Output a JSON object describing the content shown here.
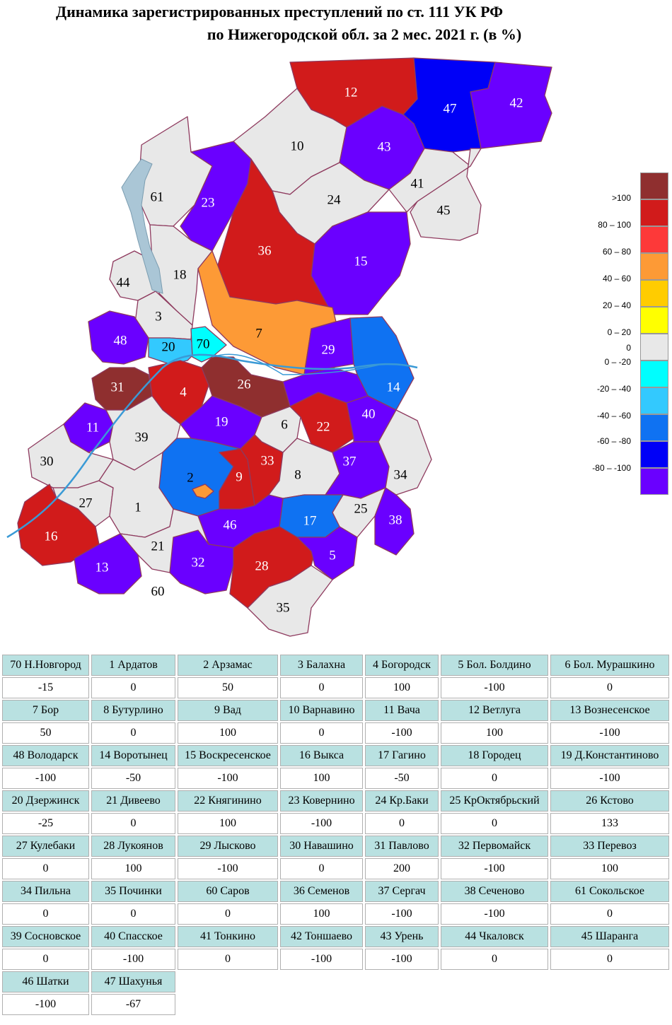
{
  "title": {
    "line1": "Динамика зарегистрированных преступлений по ст. 111 УК РФ",
    "line2": "по Нижегородской обл. за 2 мес. 2021 г. (в %)"
  },
  "legend": [
    {
      "label": ">100",
      "color": "#8f2f2f"
    },
    {
      "label": "80 – 100",
      "color": "#d11b1b"
    },
    {
      "label": "60 – 80",
      "color": "#fd3939"
    },
    {
      "label": "40 – 60",
      "color": "#fd9a36"
    },
    {
      "label": "20 – 40",
      "color": "#ffcc00"
    },
    {
      "label": "0 – 20",
      "color": "#ffff00"
    },
    {
      "label": "0",
      "color": "#e8e8e8"
    },
    {
      "label": "0 – -20",
      "color": "#00fefe"
    },
    {
      "label": "-20 – -40",
      "color": "#33c9fe"
    },
    {
      "label": "-40 – -60",
      "color": "#0f72f2"
    },
    {
      "label": "-60 – -80",
      "color": "#0000f7"
    },
    {
      "label": "-80 – -100",
      "color": "#6a00ff"
    }
  ],
  "map_labels": [
    {
      "id": "12",
      "color_light": true
    },
    {
      "id": "47",
      "color_light": true
    },
    {
      "id": "42",
      "color_light": true
    },
    {
      "id": "10"
    },
    {
      "id": "43",
      "color_light": true
    },
    {
      "id": "61"
    },
    {
      "id": "23",
      "color_light": true
    },
    {
      "id": "24"
    },
    {
      "id": "41"
    },
    {
      "id": "45"
    },
    {
      "id": "36",
      "color_light": true
    },
    {
      "id": "15",
      "color_light": true
    },
    {
      "id": "44"
    },
    {
      "id": "18"
    },
    {
      "id": "3"
    },
    {
      "id": "7"
    },
    {
      "id": "48",
      "color_light": true
    },
    {
      "id": "20"
    },
    {
      "id": "70"
    },
    {
      "id": "29",
      "color_light": true
    },
    {
      "id": "14",
      "color_light": true
    },
    {
      "id": "31",
      "color_light": true
    },
    {
      "id": "4",
      "color_light": true
    },
    {
      "id": "26",
      "color_light": true
    },
    {
      "id": "11",
      "color_light": true
    },
    {
      "id": "39"
    },
    {
      "id": "19",
      "color_light": true
    },
    {
      "id": "6"
    },
    {
      "id": "22",
      "color_light": true
    },
    {
      "id": "40",
      "color_light": true
    },
    {
      "id": "30"
    },
    {
      "id": "2"
    },
    {
      "id": "9",
      "color_light": true
    },
    {
      "id": "33",
      "color_light": true
    },
    {
      "id": "8"
    },
    {
      "id": "37",
      "color_light": true
    },
    {
      "id": "34"
    },
    {
      "id": "27"
    },
    {
      "id": "1"
    },
    {
      "id": "25"
    },
    {
      "id": "38",
      "color_light": true
    },
    {
      "id": "17",
      "color_light": true
    },
    {
      "id": "46",
      "color_light": true
    },
    {
      "id": "16",
      "color_light": true
    },
    {
      "id": "21"
    },
    {
      "id": "13",
      "color_light": true
    },
    {
      "id": "32",
      "color_light": true
    },
    {
      "id": "28",
      "color_light": true
    },
    {
      "id": "5",
      "color_light": true
    },
    {
      "id": "60"
    },
    {
      "id": "35"
    }
  ],
  "regions": [
    {
      "name": "70 Н.Новгород",
      "value": "-15"
    },
    {
      "name": "1 Ардатов",
      "value": "0"
    },
    {
      "name": "2 Арзамас",
      "value": "50"
    },
    {
      "name": "3 Балахна",
      "value": "0"
    },
    {
      "name": "4 Богородск",
      "value": "100"
    },
    {
      "name": "5 Бол. Болдино",
      "value": "-100"
    },
    {
      "name": "6 Бол. Мурашкино",
      "value": "0"
    },
    {
      "name": "7 Бор",
      "value": "50"
    },
    {
      "name": "8 Бутурлино",
      "value": "0"
    },
    {
      "name": "9 Вад",
      "value": "100"
    },
    {
      "name": "10 Варнавино",
      "value": "0"
    },
    {
      "name": "11 Вача",
      "value": "-100"
    },
    {
      "name": "12 Ветлуга",
      "value": "100"
    },
    {
      "name": "13 Вознесенское",
      "value": "-100"
    },
    {
      "name": "48 Володарск",
      "value": "-100"
    },
    {
      "name": "14 Воротынец",
      "value": "-50"
    },
    {
      "name": "15 Воскресенское",
      "value": "-100"
    },
    {
      "name": "16 Выкса",
      "value": "100"
    },
    {
      "name": "17 Гагино",
      "value": "-50"
    },
    {
      "name": "18 Городец",
      "value": "0"
    },
    {
      "name": "19 Д.Константиново",
      "value": "-100"
    },
    {
      "name": "20 Дзержинск",
      "value": "-25"
    },
    {
      "name": "21 Дивеево",
      "value": "0"
    },
    {
      "name": "22 Княгинино",
      "value": "100"
    },
    {
      "name": "23 Ковернино",
      "value": "-100"
    },
    {
      "name": "24 Кр.Баки",
      "value": "0"
    },
    {
      "name": "25 КрОктябрьский",
      "value": "0"
    },
    {
      "name": "26 Кстово",
      "value": "133"
    },
    {
      "name": "27 Кулебаки",
      "value": "0"
    },
    {
      "name": "28 Лукоянов",
      "value": "100"
    },
    {
      "name": "29 Лысково",
      "value": "-100"
    },
    {
      "name": "30 Навашино",
      "value": "0"
    },
    {
      "name": "31 Павлово",
      "value": "200"
    },
    {
      "name": "32 Первомайск",
      "value": "-100"
    },
    {
      "name": "33 Перевоз",
      "value": "100"
    },
    {
      "name": "34 Пильна",
      "value": "0"
    },
    {
      "name": "35 Починки",
      "value": "0"
    },
    {
      "name": "60 Саров",
      "value": "0"
    },
    {
      "name": "36 Семенов",
      "value": "100"
    },
    {
      "name": "37 Сергач",
      "value": "-100"
    },
    {
      "name": "38 Сеченово",
      "value": "-100"
    },
    {
      "name": "61 Сокольское",
      "value": "0"
    },
    {
      "name": "39 Сосновское",
      "value": "0"
    },
    {
      "name": "40 Спасское",
      "value": "-100"
    },
    {
      "name": "41 Тонкино",
      "value": "0"
    },
    {
      "name": "42 Тоншаево",
      "value": "-100"
    },
    {
      "name": "43 Урень",
      "value": "-100"
    },
    {
      "name": "44 Чкаловск",
      "value": "0"
    },
    {
      "name": "45 Шаранга",
      "value": "0"
    },
    {
      "name": "46 Шатки",
      "value": "-100"
    },
    {
      "name": "47 Шахунья",
      "value": "-67"
    }
  ]
}
